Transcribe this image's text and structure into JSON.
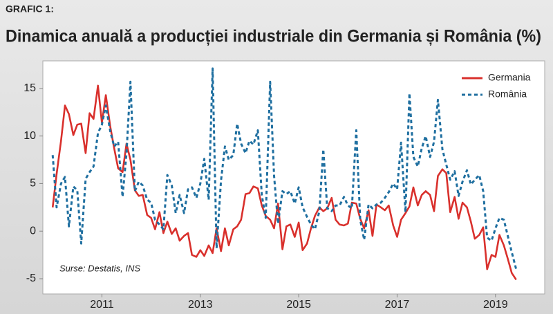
{
  "chart_data": {
    "type": "line",
    "label": "GRAFIC 1:",
    "title": "Dinamica anuală a producției industriale din Germania și România (%)",
    "annotation": "Surse: Destatis, INS",
    "x": [
      2010,
      2010.08,
      2010.17,
      2010.25,
      2010.33,
      2010.42,
      2010.5,
      2010.58,
      2010.67,
      2010.75,
      2010.83,
      2010.92,
      2011,
      2011.08,
      2011.17,
      2011.25,
      2011.33,
      2011.42,
      2011.5,
      2011.58,
      2011.67,
      2011.75,
      2011.83,
      2011.92,
      2012,
      2012.08,
      2012.17,
      2012.25,
      2012.33,
      2012.42,
      2012.5,
      2012.58,
      2012.67,
      2012.75,
      2012.83,
      2012.92,
      2013,
      2013.08,
      2013.17,
      2013.25,
      2013.33,
      2013.42,
      2013.5,
      2013.58,
      2013.67,
      2013.75,
      2013.83,
      2013.92,
      2014,
      2014.08,
      2014.17,
      2014.25,
      2014.33,
      2014.42,
      2014.5,
      2014.58,
      2014.67,
      2014.75,
      2014.83,
      2014.92,
      2015,
      2015.08,
      2015.17,
      2015.25,
      2015.33,
      2015.42,
      2015.5,
      2015.58,
      2015.67,
      2015.75,
      2015.83,
      2015.92,
      2016,
      2016.08,
      2016.17,
      2016.25,
      2016.33,
      2016.42,
      2016.5,
      2016.58,
      2016.67,
      2016.75,
      2016.83,
      2016.92,
      2017,
      2017.08,
      2017.17,
      2017.25,
      2017.33,
      2017.42,
      2017.5,
      2017.58,
      2017.67,
      2017.75,
      2017.83,
      2017.92,
      2018,
      2018.08,
      2018.17,
      2018.25,
      2018.33,
      2018.42,
      2018.5,
      2018.58,
      2018.67,
      2018.75,
      2018.83,
      2018.92,
      2019,
      2019.08,
      2019.17,
      2019.25,
      2019.33,
      2019.42
    ],
    "series": [
      {
        "name": "Germania",
        "color": "#d9302c",
        "dash": false,
        "values": [
          2.5,
          6,
          9.5,
          13.2,
          12.3,
          10.1,
          11.2,
          11.3,
          8.2,
          12.4,
          11.8,
          15.3,
          11.4,
          14.3,
          11,
          8.7,
          6.6,
          6.2,
          9.2,
          7.5,
          4.3,
          3.7,
          3.8,
          1.7,
          1.4,
          0.2,
          2,
          -0.2,
          1,
          -0.3,
          0.3,
          -1,
          -0.5,
          -0.2,
          -2.5,
          -2.7,
          -2,
          -2.6,
          -1.5,
          -2.3,
          0.3,
          -2.1,
          0.3,
          -1.5,
          0.2,
          0.5,
          1.2,
          3.9,
          4,
          4.7,
          4.5,
          2.7,
          1.6,
          1.2,
          0.3,
          2.9,
          -1.9,
          0.5,
          0.7,
          -0.6,
          0.9,
          -2,
          -1.3,
          0.3,
          1.6,
          2.5,
          2.1,
          2.4,
          3.5,
          1.2,
          0.7,
          0.6,
          0.8,
          3,
          2.9,
          1.3,
          0.3,
          2.2,
          -0.5,
          2.8,
          2.5,
          2.2,
          2.7,
          0.6,
          -0.6,
          1.2,
          1.9,
          2.6,
          4.6,
          2.7,
          3.8,
          4.2,
          3.8,
          2.1,
          5.8,
          6.5,
          6.1,
          2,
          3.6,
          1.3,
          3,
          2.5,
          1,
          -0.8,
          -0.4,
          0.4,
          -4,
          -2.5,
          -2.7,
          -0.4,
          -1.5,
          -2.9,
          -4.4,
          -5.1
        ]
      },
      {
        "name": "România",
        "color": "#1f6fa0",
        "dash": true,
        "values": [
          8,
          2.5,
          5,
          5.7,
          0.5,
          4.7,
          4.3,
          -1.3,
          5.5,
          6.2,
          6.8,
          10.3,
          11.2,
          13.2,
          10.5,
          8.9,
          9.4,
          3.6,
          8.2,
          15.7,
          4.2,
          5.2,
          4.8,
          3.3,
          3,
          1.2,
          0.7,
          0.2,
          5.9,
          4.8,
          1.9,
          3.8,
          1.9,
          4.4,
          4.6,
          3.5,
          5,
          7.6,
          3.3,
          17.1,
          -1.8,
          5.3,
          8.9,
          7.5,
          8,
          11.3,
          9.2,
          8.2,
          9.5,
          9.1,
          10.6,
          3.8,
          1.4,
          15.7,
          5.8,
          0.8,
          4.2,
          3.9,
          4.2,
          2.9,
          4.6,
          2.5,
          1.5,
          0.7,
          0.2,
          2.1,
          8.6,
          2.4,
          2.1,
          2.7,
          2.7,
          3.6,
          2.7,
          2.4,
          10.6,
          1.2,
          -0.9,
          2.8,
          2.4,
          2.8,
          3,
          3.5,
          4.1,
          5,
          4.4,
          9.3,
          2,
          14.5,
          7.8,
          6.8,
          8.7,
          10,
          7.8,
          9.4,
          13.8,
          8.6,
          7,
          5.4,
          6.3,
          3.7,
          5.2,
          6.4,
          4.9,
          5.4,
          5.9,
          4.2,
          -0.7,
          -1,
          0.3,
          1.4,
          1.2,
          -0.5,
          -2.2,
          -4
        ]
      }
    ],
    "xlim": [
      2009.8,
      2020
    ],
    "xticks": [
      2011,
      2013,
      2015,
      2017,
      2019
    ],
    "ylim": [
      -6.6,
      17.9
    ],
    "yticks": [
      -5,
      0,
      5,
      10,
      15
    ],
    "grid": false,
    "legend": "upper right"
  }
}
